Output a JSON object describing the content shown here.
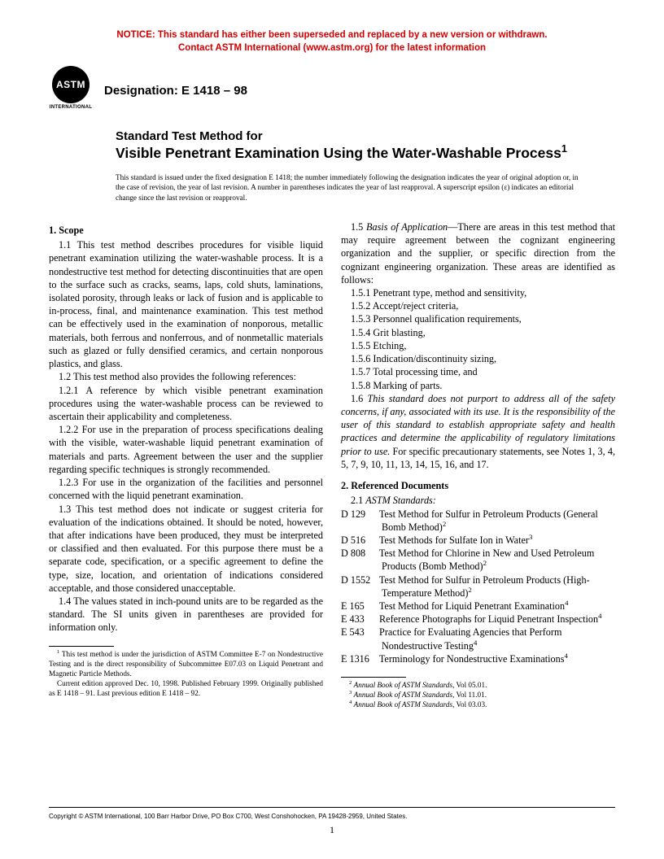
{
  "notice": {
    "line1": "NOTICE: This standard has either been superseded and replaced by a new version or withdrawn.",
    "line2": "Contact ASTM International (www.astm.org) for the latest information",
    "color": "#d40000"
  },
  "logo": {
    "text": "ASTM",
    "sub": "INTERNATIONAL"
  },
  "designation": "Designation: E 1418 – 98",
  "title": {
    "prefix": "Standard Test Method for",
    "main": "Visible Penetrant Examination Using the Water-Washable Process",
    "sup": "1"
  },
  "issued": "This standard is issued under the fixed designation E 1418; the number immediately following the designation indicates the year of original adoption or, in the case of revision, the year of last revision. A number in parentheses indicates the year of last reapproval. A superscript epsilon (ε) indicates an editorial change since the last revision or reapproval.",
  "s1": {
    "head": "1. Scope",
    "p11": "1.1 This test method describes procedures for visible liquid penetrant examination utilizing the water-washable process. It is a nondestructive test method for detecting discontinuities that are open to the surface such as cracks, seams, laps, cold shuts, laminations, isolated porosity, through leaks or lack of fusion and is applicable to in-process, final, and maintenance examination. This test method can be effectively used in the examination of nonporous, metallic materials, both ferrous and nonferrous, and of nonmetallic materials such as glazed or fully densified ceramics, and certain nonporous plastics, and glass.",
    "p12": "1.2 This test method also provides the following references:",
    "p121": "1.2.1 A reference by which visible penetrant examination procedures using the water-washable process can be reviewed to ascertain their applicability and completeness.",
    "p122": "1.2.2 For use in the preparation of process specifications dealing with the visible, water-washable liquid penetrant examination of materials and parts. Agreement between the user and the supplier regarding specific techniques is strongly recommended.",
    "p123": "1.2.3 For use in the organization of the facilities and personnel concerned with the liquid penetrant examination.",
    "p13": "1.3 This test method does not indicate or suggest criteria for evaluation of the indications obtained. It should be noted, however, that after indications have been produced, they must be interpreted or classified and then evaluated. For this purpose there must be a separate code, specification, or a specific agreement to define the type, size, location, and orientation of indications considered acceptable, and those considered unacceptable.",
    "p14": "1.4 The values stated in inch-pound units are to be regarded as the standard. The SI units given in parentheses are provided for information only.",
    "p15a": "1.5 ",
    "p15b": "Basis of Application",
    "p15c": "—There are areas in this test method that may require agreement between the cognizant engineering organization and the supplier, or specific direction from the cognizant engineering organization. These areas are identified as follows:",
    "p151": "1.5.1 Penetrant type, method and sensitivity,",
    "p152": "1.5.2 Accept/reject criteria,",
    "p153": "1.5.3 Personnel qualification requirements,",
    "p154": "1.5.4 Grit blasting,",
    "p155": "1.5.5 Etching,",
    "p156": "1.5.6 Indication/discontinuity sizing,",
    "p157": "1.5.7 Total processing time, and",
    "p158": "1.5.8 Marking of parts.",
    "p16a": "1.6 ",
    "p16b": "This standard does not purport to address all of the safety concerns, if any, associated with its use. It is the responsibility of the user of this standard to establish appropriate safety and health practices and determine the applicability of regulatory limitations prior to use.",
    "p16c": " For specific precautionary statements, see Notes 1, 3, 4, 5, 7, 9, 10, 11, 13, 14, 15, 16, and 17."
  },
  "s2": {
    "head": "2. Referenced Documents",
    "sub": "2.1 ",
    "subital": "ASTM Standards:",
    "refs": [
      {
        "label": "D 129",
        "text": "Test Method for Sulfur in Petroleum Products (General Bomb Method)",
        "sup": "2"
      },
      {
        "label": "D 516",
        "text": "Test Methods for Sulfate Ion in Water",
        "sup": "3"
      },
      {
        "label": "D 808",
        "text": "Test Method for Chlorine in New and Used Petroleum Products (Bomb Method)",
        "sup": "2"
      },
      {
        "label": "D 1552",
        "text": "Test Method for Sulfur in Petroleum Products (High-Temperature Method)",
        "sup": "2"
      },
      {
        "label": "E 165",
        "text": "Test Method for Liquid Penetrant Examination",
        "sup": "4"
      },
      {
        "label": "E 433",
        "text": "Reference Photographs for Liquid Penetrant Inspection",
        "sup": "4"
      },
      {
        "label": "E 543",
        "text": "Practice for Evaluating Agencies that Perform Nondestructive Testing",
        "sup": "4"
      },
      {
        "label": "E 1316",
        "text": "Terminology for Nondestructive Examinations",
        "sup": "4"
      }
    ]
  },
  "footL": {
    "f1a": "This test method is under the jurisdiction of ASTM Committee E-7 on Nondestructive Testing and is the direct responsibility of Subcommittee E07.03 on Liquid Penetrant and Magnetic Particle Methods.",
    "f1b": "Current edition approved Dec. 10, 1998. Published February 1999. Originally published as E 1418 – 91. Last previous edition E 1418 – 92."
  },
  "footR": {
    "f2": "Annual Book of ASTM Standards",
    "v2": ", Vol 05.01.",
    "v3": ", Vol 11.01.",
    "v4": ", Vol 03.03."
  },
  "copyright": "Copyright © ASTM International, 100 Barr Harbor Drive, PO Box C700, West Conshohocken, PA 19428-2959, United States.",
  "pagenum": "1"
}
